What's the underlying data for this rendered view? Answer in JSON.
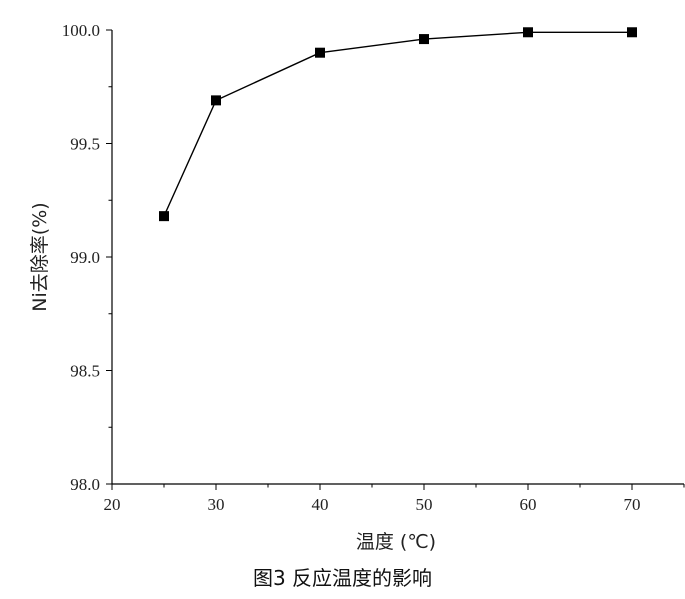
{
  "chart_data": {
    "type": "line",
    "x": [
      25,
      30,
      40,
      50,
      60,
      70
    ],
    "series": [
      {
        "values": [
          99.18,
          99.69,
          99.9,
          99.96,
          99.99,
          99.99
        ],
        "marker": "square",
        "color": "#000000"
      }
    ],
    "xlabel": "温度 (℃)",
    "ylabel": "Ni去除率(%)",
    "xlim": [
      20,
      75
    ],
    "ylim": [
      98.0,
      100.0
    ],
    "xticks": [
      20,
      30,
      40,
      50,
      60,
      70
    ],
    "yticks": [
      98.0,
      98.5,
      99.0,
      99.5,
      100.0
    ],
    "ytick_labels": [
      "98.0",
      "98.5",
      "99.0",
      "99.5",
      "100.0"
    ],
    "grid": false,
    "legend": "none"
  },
  "caption": "图3  反应温度的影响"
}
